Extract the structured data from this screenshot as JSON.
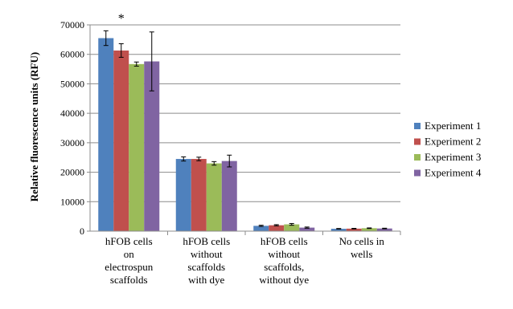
{
  "chart_data": {
    "type": "bar",
    "title": "",
    "xlabel": "",
    "ylabel": "Relative fluorescence units (RFU)",
    "ylim": [
      0,
      70000
    ],
    "yticks": [
      0,
      10000,
      20000,
      30000,
      40000,
      50000,
      60000,
      70000
    ],
    "grid": true,
    "legend_position": "right",
    "categories": [
      [
        "hFOB cells",
        "on",
        "electrospun",
        "scaffolds"
      ],
      [
        "hFOB cells",
        "without",
        "scaffolds",
        "with dye"
      ],
      [
        "hFOB cells",
        "without",
        "scaffolds,",
        "without dye"
      ],
      [
        "No cells in",
        "wells"
      ]
    ],
    "series": [
      {
        "name": "Experiment 1",
        "color": "#4f81bd",
        "values": [
          65500,
          24500,
          1800,
          800
        ],
        "errors": [
          2500,
          700,
          200,
          100
        ]
      },
      {
        "name": "Experiment 2",
        "color": "#c0504d",
        "values": [
          61300,
          24500,
          2000,
          850
        ],
        "errors": [
          2300,
          600,
          200,
          100
        ]
      },
      {
        "name": "Experiment 3",
        "color": "#9bbb59",
        "values": [
          56700,
          23000,
          2300,
          1000
        ],
        "errors": [
          700,
          600,
          300,
          100
        ]
      },
      {
        "name": "Experiment 4",
        "color": "#8064a2",
        "values": [
          57600,
          23800,
          1200,
          900
        ],
        "errors": [
          10000,
          2000,
          200,
          100
        ]
      }
    ],
    "annotations": [
      {
        "text": "*",
        "category_index": 0
      }
    ]
  }
}
